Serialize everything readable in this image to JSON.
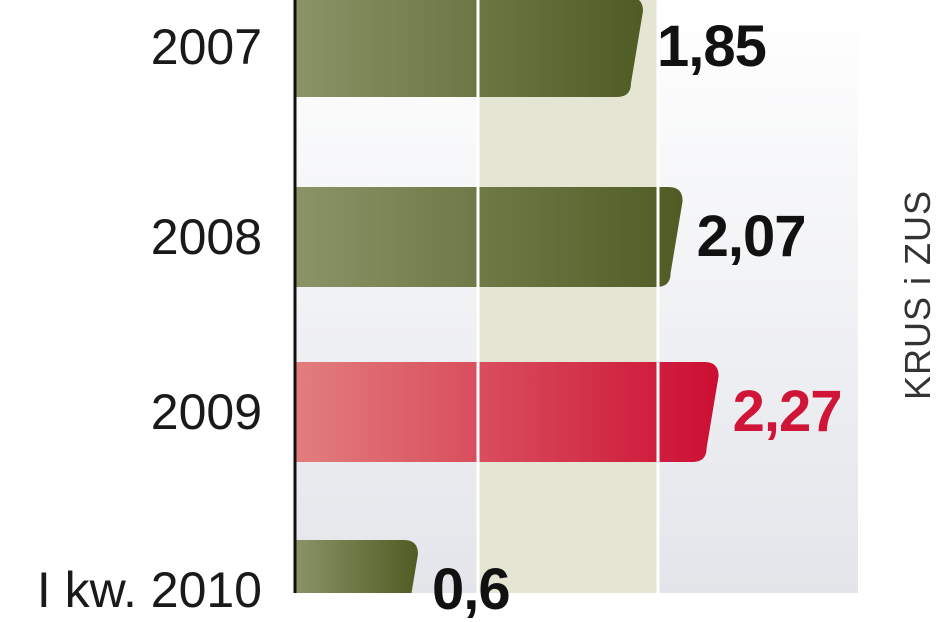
{
  "chart_data": {
    "type": "bar",
    "orientation": "horizontal",
    "categories": [
      "2007",
      "2008",
      "2009",
      "I kw. 2010"
    ],
    "values": [
      1.85,
      2.07,
      2.27,
      0.6
    ],
    "value_labels": [
      "1,85",
      "2,07",
      "2,27",
      "0,6"
    ],
    "highlight_index": 2,
    "xlim": [
      0,
      2.5
    ],
    "grid": true,
    "colors": {
      "default": "#5d6a2e",
      "highlight": "#cf1538"
    }
  },
  "source": "KRUS i ZUS"
}
